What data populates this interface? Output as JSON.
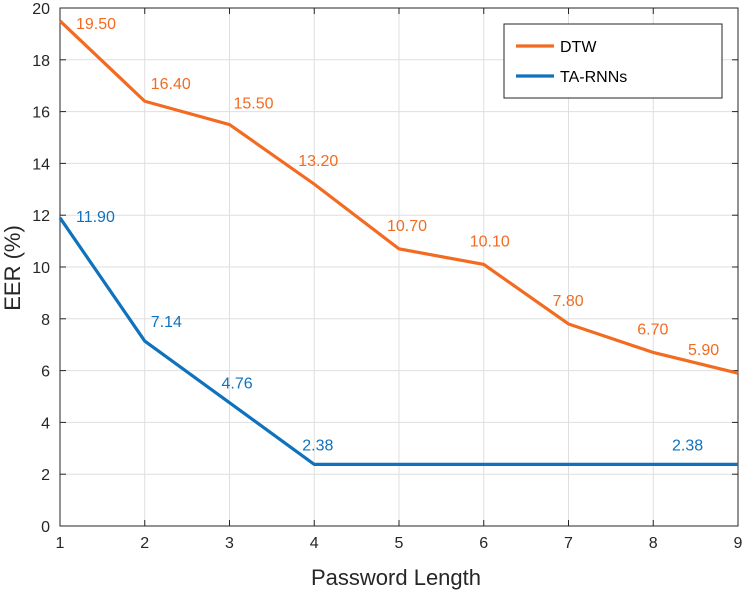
{
  "chart_data": {
    "type": "line",
    "title": "",
    "xlabel": "Password Length",
    "ylabel": "EER (%)",
    "x": [
      1,
      2,
      3,
      4,
      5,
      6,
      7,
      8,
      9
    ],
    "xlim": [
      1,
      9
    ],
    "ylim": [
      0,
      20
    ],
    "xticks": [
      "1",
      "2",
      "3",
      "4",
      "5",
      "6",
      "7",
      "8",
      "9"
    ],
    "yticks": [
      "0",
      "2",
      "4",
      "6",
      "8",
      "10",
      "12",
      "14",
      "16",
      "18",
      "20"
    ],
    "grid": true,
    "legend_position": "top-right",
    "series": [
      {
        "name": "DTW",
        "color": "#F26B21",
        "values": [
          19.5,
          16.4,
          15.5,
          13.2,
          10.7,
          10.1,
          7.8,
          6.7,
          5.9
        ],
        "labels": [
          "19.50",
          "16.40",
          "15.50",
          "13.20",
          "10.70",
          "10.10",
          "7.80",
          "6.70",
          "5.90"
        ]
      },
      {
        "name": "TA-RNNs",
        "color": "#0F72BD",
        "values": [
          11.9,
          7.14,
          4.76,
          2.38,
          2.38,
          2.38,
          2.38,
          2.38,
          2.38
        ],
        "labels": [
          "11.90",
          "7.14",
          "4.76",
          "2.38",
          "",
          "",
          "",
          "",
          "2.38"
        ]
      }
    ]
  }
}
